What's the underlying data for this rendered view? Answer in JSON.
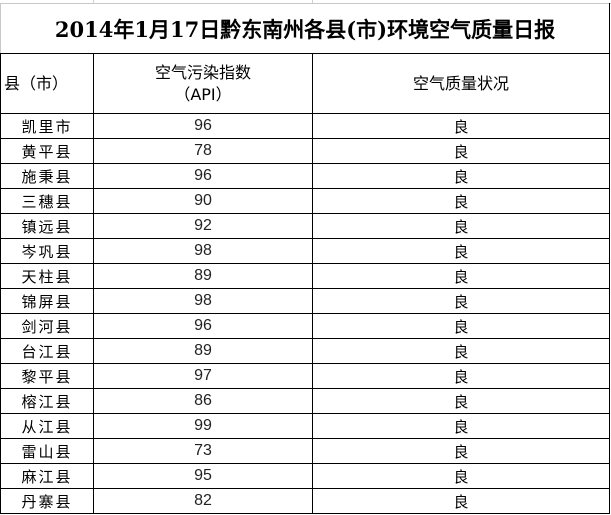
{
  "title": "2014年1月17日黔东南州各县(市)环境空气质量日报",
  "headers": {
    "county": "县（市）",
    "api_line1": "空气污染指数",
    "api_line2": "（API）",
    "quality": "空气质量状况"
  },
  "rows": [
    {
      "county": "凯里市",
      "api": "96",
      "quality": "良"
    },
    {
      "county": "黄平县",
      "api": "78",
      "quality": "良"
    },
    {
      "county": "施秉县",
      "api": "96",
      "quality": "良"
    },
    {
      "county": "三穗县",
      "api": "90",
      "quality": "良"
    },
    {
      "county": "镇远县",
      "api": "92",
      "quality": "良"
    },
    {
      "county": "岑巩县",
      "api": "98",
      "quality": "良"
    },
    {
      "county": "天柱县",
      "api": "89",
      "quality": "良"
    },
    {
      "county": "锦屏县",
      "api": "98",
      "quality": "良"
    },
    {
      "county": "剑河县",
      "api": "96",
      "quality": "良"
    },
    {
      "county": "台江县",
      "api": "89",
      "quality": "良"
    },
    {
      "county": "黎平县",
      "api": "97",
      "quality": "良"
    },
    {
      "county": "榕江县",
      "api": "86",
      "quality": "良"
    },
    {
      "county": "从江县",
      "api": "99",
      "quality": "良"
    },
    {
      "county": "雷山县",
      "api": "73",
      "quality": "良"
    },
    {
      "county": "麻江县",
      "api": "95",
      "quality": "良"
    },
    {
      "county": "丹寨县",
      "api": "82",
      "quality": "良"
    }
  ]
}
